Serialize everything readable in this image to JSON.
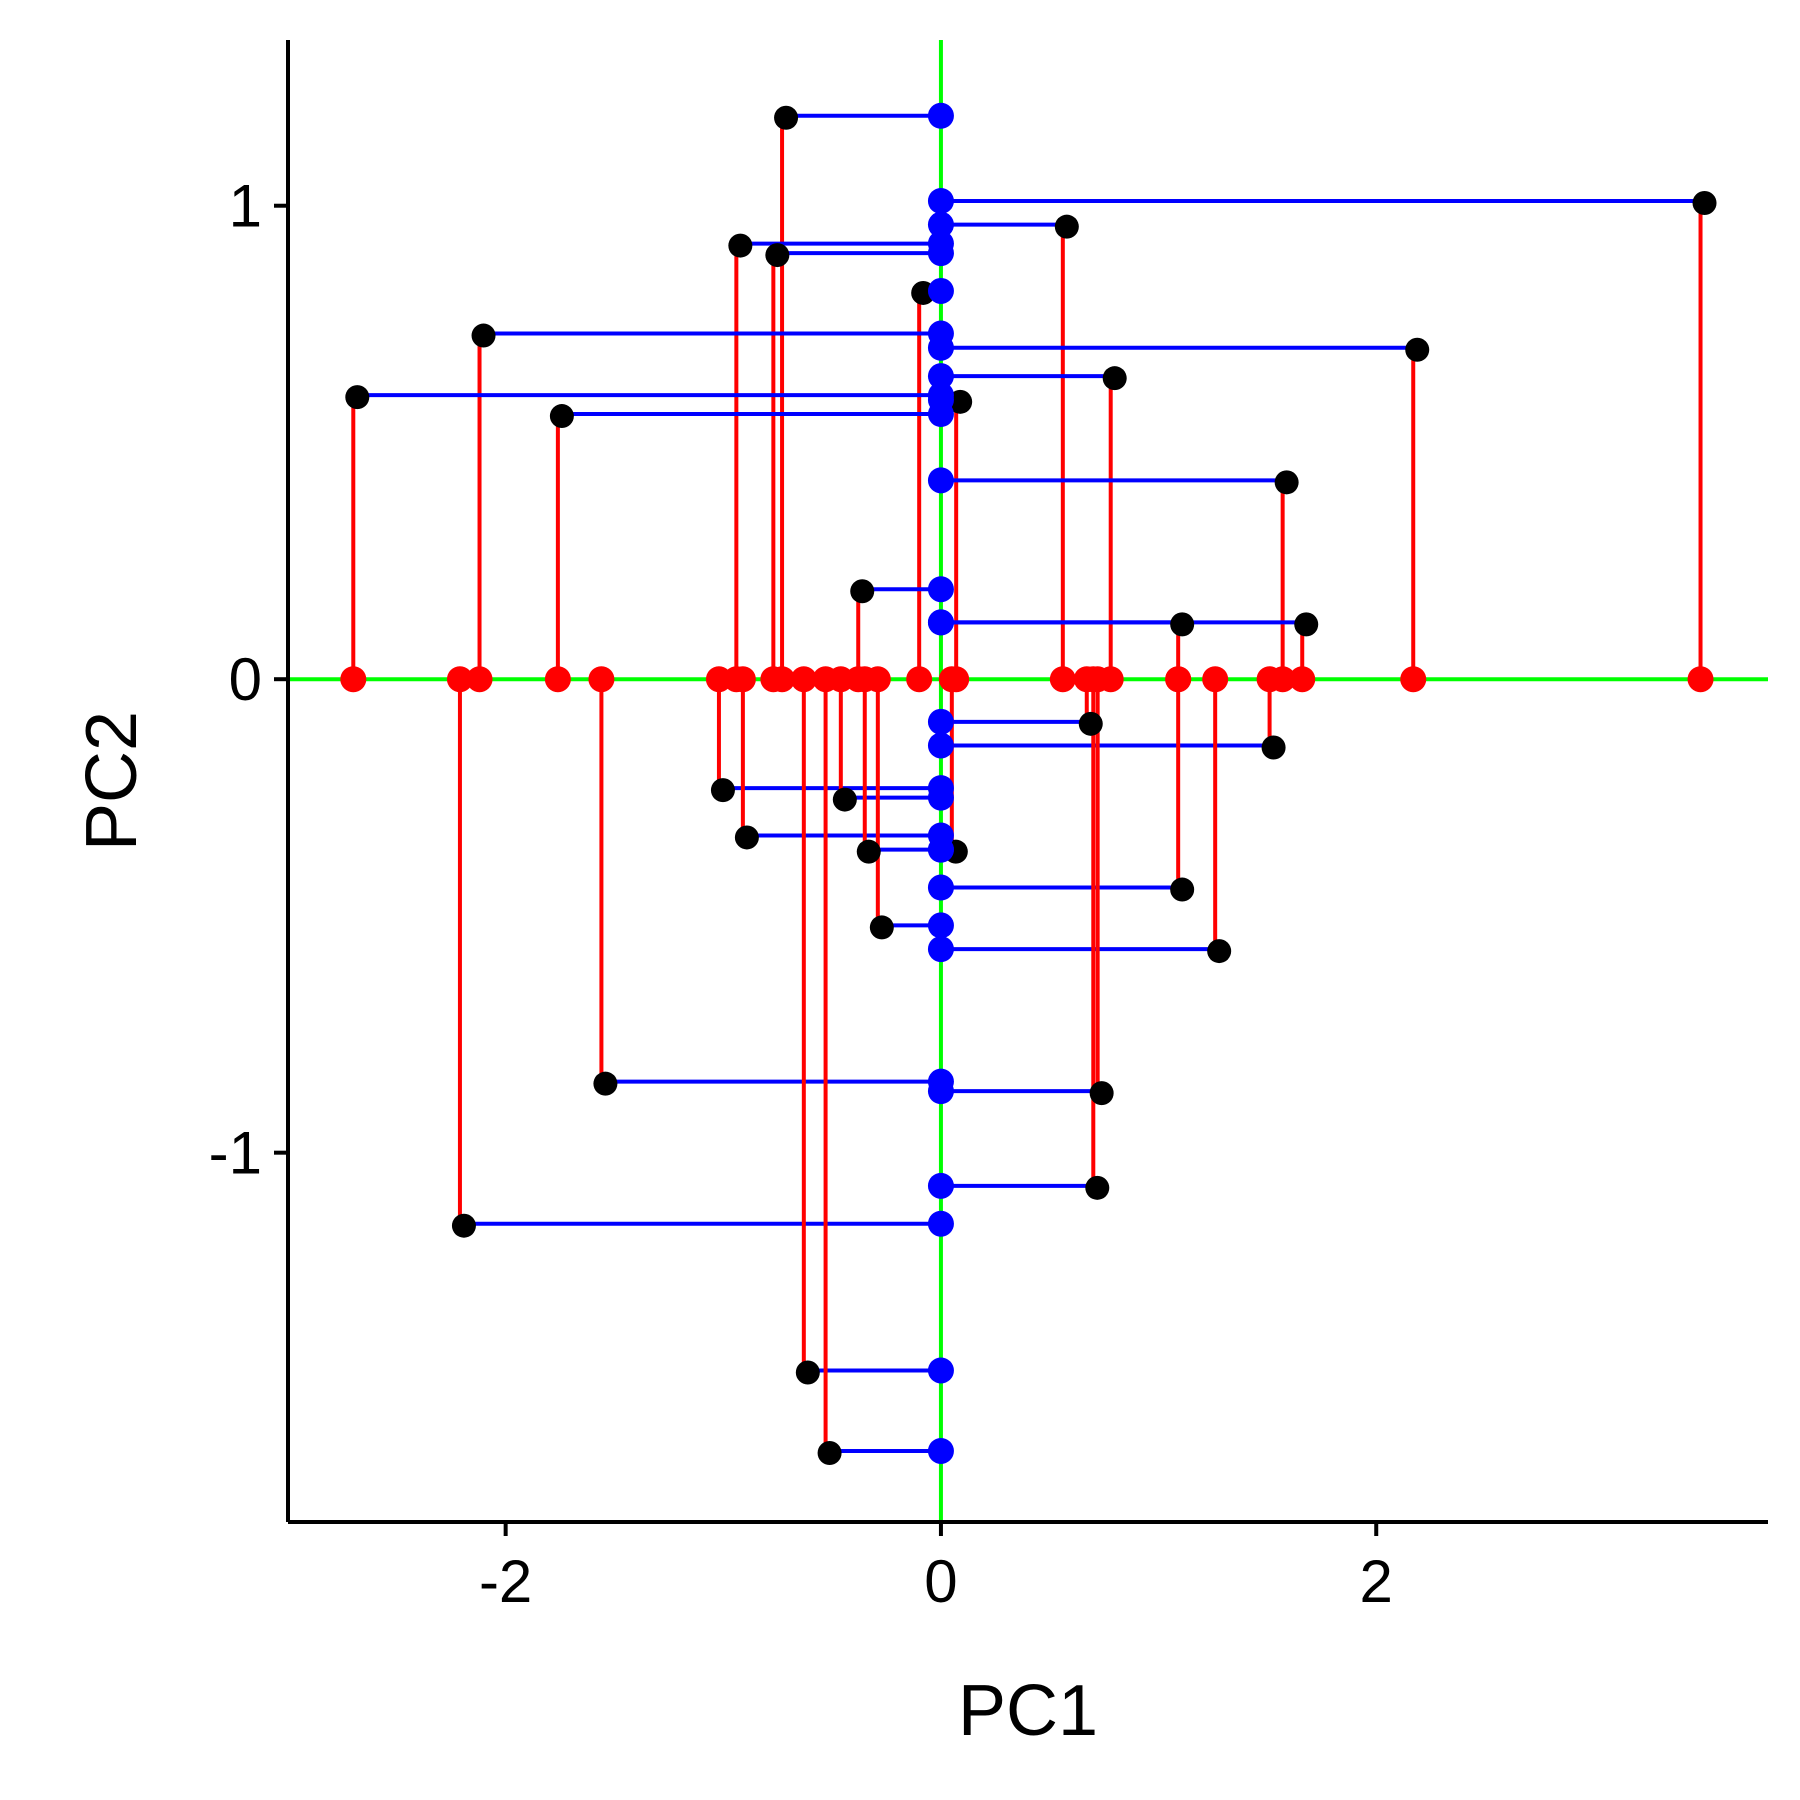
{
  "chart_data": {
    "type": "scatter",
    "xlabel": "PC1",
    "ylabel": "PC2",
    "xlim": [
      -3.0,
      3.8
    ],
    "ylim": [
      -1.78,
      1.35
    ],
    "xticks": [
      -2,
      0,
      2
    ],
    "xtick_labels": [
      "-2",
      "0",
      "2"
    ],
    "yticks": [
      -1,
      0,
      1
    ],
    "ytick_labels": [
      "-1",
      "0",
      "1"
    ],
    "grid": false,
    "legend": "none",
    "reference_lines": {
      "x": 0,
      "y": 0
    },
    "colors": {
      "points": "#000000",
      "projection_x": "#ff0000",
      "projection_y": "#0000ff",
      "reference_lines": "#00ff00",
      "axes": "#000000"
    },
    "points": [
      {
        "x": -0.73,
        "y": 1.19
      },
      {
        "x": 3.49,
        "y": 1.01
      },
      {
        "x": 0.56,
        "y": 0.96
      },
      {
        "x": -0.94,
        "y": 0.92
      },
      {
        "x": -0.77,
        "y": 0.9
      },
      {
        "x": -0.1,
        "y": 0.82
      },
      {
        "x": -2.12,
        "y": 0.73
      },
      {
        "x": 2.17,
        "y": 0.7
      },
      {
        "x": 0.78,
        "y": 0.64
      },
      {
        "x": -2.7,
        "y": 0.6
      },
      {
        "x": 0.07,
        "y": 0.59
      },
      {
        "x": -1.76,
        "y": 0.56
      },
      {
        "x": 1.57,
        "y": 0.42
      },
      {
        "x": -0.38,
        "y": 0.19
      },
      {
        "x": 1.09,
        "y": 0.12
      },
      {
        "x": 1.66,
        "y": 0.12
      },
      {
        "x": 0.67,
        "y": -0.09
      },
      {
        "x": 1.51,
        "y": -0.14
      },
      {
        "x": -1.02,
        "y": -0.23
      },
      {
        "x": -0.46,
        "y": -0.25
      },
      {
        "x": -0.91,
        "y": -0.33
      },
      {
        "x": -0.35,
        "y": -0.36
      },
      {
        "x": 0.05,
        "y": -0.36
      },
      {
        "x": 1.09,
        "y": -0.44
      },
      {
        "x": -0.29,
        "y": -0.52
      },
      {
        "x": 1.26,
        "y": -0.57
      },
      {
        "x": -1.56,
        "y": -0.85
      },
      {
        "x": 0.72,
        "y": -0.87
      },
      {
        "x": 0.7,
        "y": -1.07
      },
      {
        "x": -2.21,
        "y": -1.15
      },
      {
        "x": -0.63,
        "y": -1.46
      },
      {
        "x": -0.53,
        "y": -1.63
      }
    ]
  }
}
